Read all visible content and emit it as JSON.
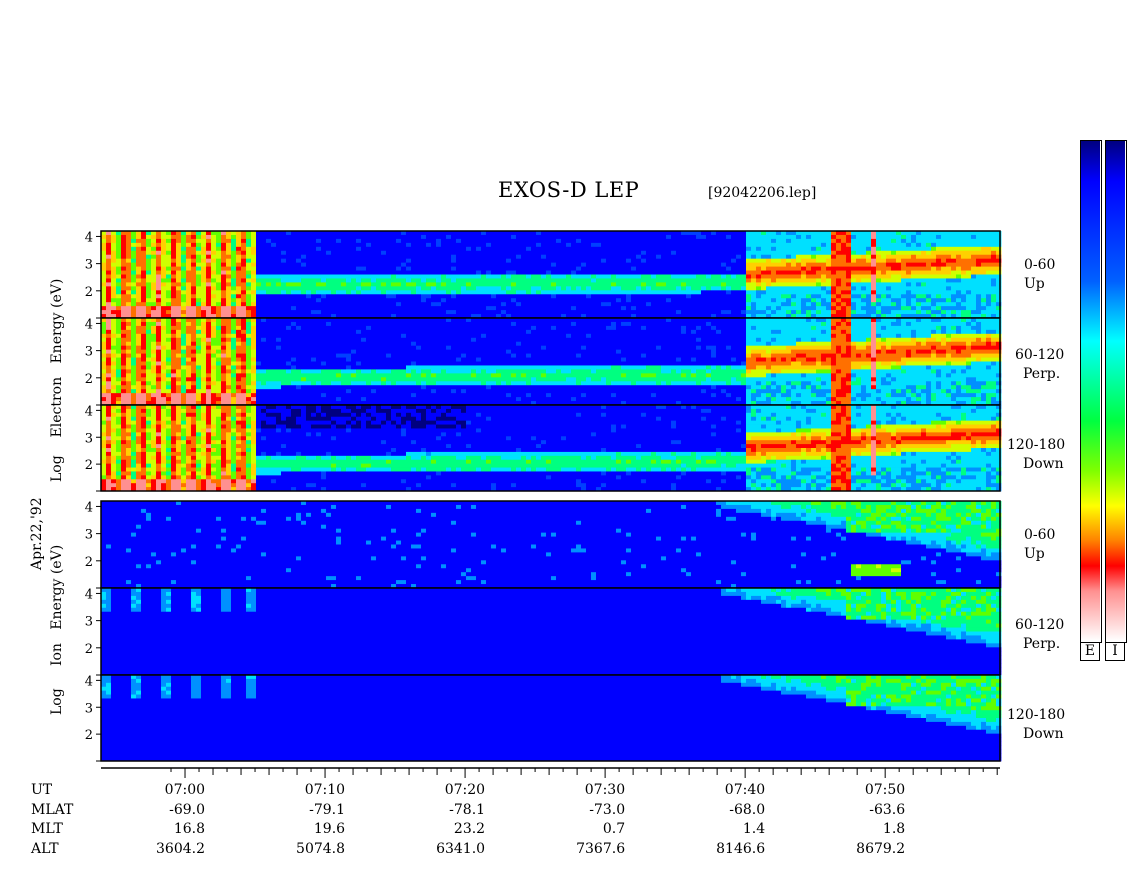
{
  "title": "EXOS-D LEP",
  "filename": "[92042206.lep]",
  "date_label": "Apr.22,'92",
  "electron_label": [
    "Log",
    "Electron",
    "Energy",
    "(eV)"
  ],
  "ion_label": [
    "Log",
    "Ion",
    "Energy",
    "(eV)"
  ],
  "angle_labels": [
    {
      "range": "0-60",
      "dir": "Up"
    },
    {
      "range": "60-120",
      "dir": "Perp."
    },
    {
      "range": "120-180",
      "dir": "Down"
    },
    {
      "range": "0-60",
      "dir": "Up"
    },
    {
      "range": "60-120",
      "dir": "Perp."
    },
    {
      "range": "120-180",
      "dir": "Down"
    }
  ],
  "colorbar_labels": [
    "E",
    "I"
  ],
  "colors": {
    "spectrum": [
      "#ffffff",
      "#ffb0b0",
      "#ff0000",
      "#ff8000",
      "#ffff00",
      "#80ff00",
      "#00ff00",
      "#00ffff",
      "#0080ff",
      "#0000ff",
      "#000080"
    ]
  },
  "footer": {
    "row_labels": [
      "UT",
      "MLAT",
      "MLT",
      "ALT"
    ],
    "columns": [
      {
        "ut": "07:00",
        "mlat": "-69.0",
        "mlt": "16.8",
        "alt": "3604.2"
      },
      {
        "ut": "07:10",
        "mlat": "-79.1",
        "mlt": "19.6",
        "alt": "5074.8"
      },
      {
        "ut": "07:20",
        "mlat": "-78.1",
        "mlt": "23.2",
        "alt": "6341.0"
      },
      {
        "ut": "07:30",
        "mlat": "-73.0",
        "mlt": "0.7",
        "alt": "7367.6"
      },
      {
        "ut": "07:40",
        "mlat": "-68.0",
        "mlt": "1.4",
        "alt": "8146.6"
      },
      {
        "ut": "07:50",
        "mlat": "-63.6",
        "mlt": "1.8",
        "alt": "8679.2"
      }
    ]
  },
  "chart_data": {
    "type": "heatmap",
    "title": "EXOS-D LEP",
    "x_ticks": [
      "07:00",
      "07:10",
      "07:20",
      "07:30",
      "07:40",
      "07:50"
    ],
    "x_minutes_range": [
      6.9,
      7.97
    ],
    "ylim": [
      1,
      4.2
    ],
    "y_ticks": [
      2,
      3,
      4
    ],
    "panels": [
      {
        "species": "Electron",
        "angle": "0-60",
        "dir": "Up"
      },
      {
        "species": "Electron",
        "angle": "60-120",
        "dir": "Perp."
      },
      {
        "species": "Electron",
        "angle": "120-180",
        "dir": "Down"
      },
      {
        "species": "Ion",
        "angle": "0-60",
        "dir": "Up"
      },
      {
        "species": "Ion",
        "angle": "60-120",
        "dir": "Perp."
      },
      {
        "species": "Ion",
        "angle": "120-180",
        "dir": "Down"
      }
    ]
  }
}
